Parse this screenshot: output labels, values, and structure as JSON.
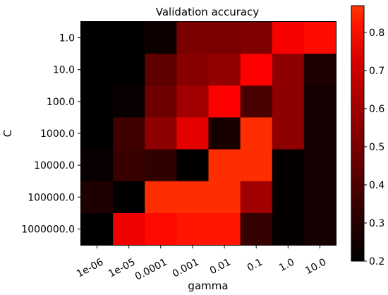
{
  "chart_data": {
    "type": "heatmap",
    "title": "Validation accuracy",
    "xlabel": "gamma",
    "ylabel": "C",
    "x_categories": [
      "1e-06",
      "1e-05",
      "0.0001",
      "0.001",
      "0.01",
      "0.1",
      "1.0",
      "10.0"
    ],
    "y_categories": [
      "1.0",
      "10.0",
      "100.0",
      "1000.0",
      "10000.0",
      "100000.0",
      "1000000.0"
    ],
    "values": [
      [
        0.2,
        0.2,
        0.23,
        0.5,
        0.5,
        0.51,
        0.8,
        0.83
      ],
      [
        0.2,
        0.2,
        0.43,
        0.53,
        0.56,
        0.82,
        0.55,
        0.27
      ],
      [
        0.2,
        0.22,
        0.47,
        0.59,
        0.82,
        0.38,
        0.55,
        0.25
      ],
      [
        0.2,
        0.36,
        0.55,
        0.76,
        0.26,
        0.86,
        0.55,
        0.25
      ],
      [
        0.22,
        0.34,
        0.32,
        0.2,
        0.86,
        0.86,
        0.21,
        0.25
      ],
      [
        0.27,
        0.2,
        0.86,
        0.86,
        0.86,
        0.59,
        0.21,
        0.25
      ],
      [
        0.2,
        0.79,
        0.83,
        0.84,
        0.84,
        0.33,
        0.21,
        0.25
      ]
    ],
    "colormap": [
      "#000000",
      "#ff0000",
      "#ffffff"
    ],
    "vmin": 0.2,
    "vmax": 0.87,
    "colorbar_ticks": [
      "0.2",
      "0.3",
      "0.4",
      "0.5",
      "0.6",
      "0.7",
      "0.8"
    ],
    "grid": false
  }
}
